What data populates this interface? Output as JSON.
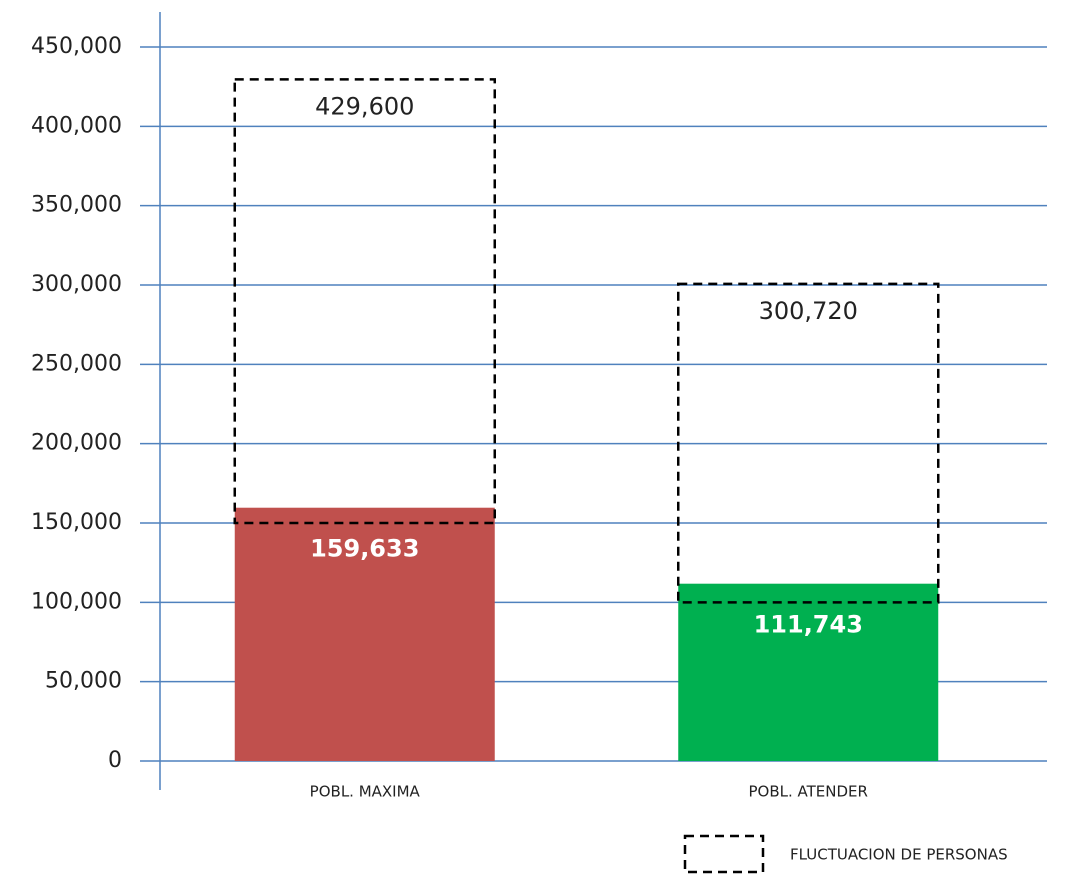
{
  "chart_data": {
    "type": "bar",
    "categories": [
      "POBL. MAXIMA",
      "POBL. ATENDER"
    ],
    "values": [
      159633,
      111743
    ],
    "value_labels": [
      "159,633",
      "111,743"
    ],
    "colors": [
      "#c0504d",
      "#00b050"
    ],
    "series": [
      {
        "name": "FLUCTUACION DE PERSONAS",
        "color": "#000000",
        "low": [
          150000,
          100000
        ],
        "values": [
          429600,
          300720
        ],
        "value_labels": [
          "429,600",
          "300,720"
        ]
      }
    ],
    "ylim": [
      0,
      450000
    ],
    "yticks": [
      0,
      {
        "value": 50000,
        "label": "50,000"
      },
      {
        "value": 100000,
        "label": "100,000"
      },
      {
        "value": 150000,
        "label": "150,000"
      },
      {
        "value": 200000,
        "label": "200,000"
      },
      {
        "value": 250000,
        "label": "250,000"
      },
      {
        "value": 300000,
        "label": "300,000"
      },
      {
        "value": 350000,
        "label": "350,000"
      },
      {
        "value": 400000,
        "label": "400,000"
      },
      {
        "value": 450000,
        "label": "450,000"
      }
    ],
    "grid": true,
    "legend": "bottom-right"
  }
}
